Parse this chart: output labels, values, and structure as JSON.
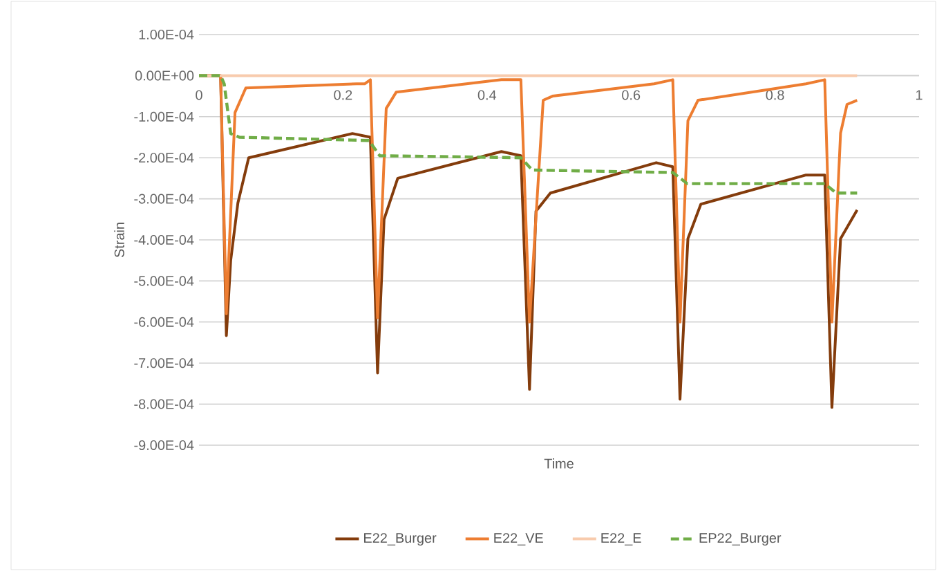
{
  "chart_data": {
    "type": "line",
    "xlabel": "Time",
    "ylabel": "Strain",
    "xlim": [
      0,
      1
    ],
    "xticks": [
      0,
      0.2,
      0.4,
      0.6,
      0.8,
      1
    ],
    "ylim": [
      -0.0009,
      0.0001
    ],
    "yticks": [
      {
        "value": 0.0001,
        "label": "1.00E-04"
      },
      {
        "value": 0,
        "label": "0.00E+00"
      },
      {
        "value": -0.0001,
        "label": "-1.00E-04"
      },
      {
        "value": -0.0002,
        "label": "-2.00E-04"
      },
      {
        "value": -0.0003,
        "label": "-3.00E-04"
      },
      {
        "value": -0.0004,
        "label": "-4.00E-04"
      },
      {
        "value": -0.0005,
        "label": "-5.00E-04"
      },
      {
        "value": -0.0006,
        "label": "-6.00E-04"
      },
      {
        "value": -0.0007,
        "label": "-7.00E-04"
      },
      {
        "value": -0.0008,
        "label": "-8.00E-04"
      },
      {
        "value": -0.0009,
        "label": "-9.00E-04"
      }
    ],
    "grid": "y",
    "legend": "bottom",
    "marker": "none",
    "series": [
      {
        "name": "E22_Burger",
        "color": "#843c0c",
        "line_style": "solid",
        "x": [
          0,
          0.03,
          0.038,
          0.044,
          0.054,
          0.069,
          0.213,
          0.238,
          0.248,
          0.257,
          0.276,
          0.42,
          0.447,
          0.459,
          0.468,
          0.488,
          0.635,
          0.658,
          0.668,
          0.679,
          0.697,
          0.843,
          0.869,
          0.879,
          0.891,
          0.914
        ],
        "values": [
          0,
          0,
          -0.000633,
          -0.00045,
          -0.00031,
          -0.0002,
          -0.000141,
          -0.00015,
          -0.000724,
          -0.00035,
          -0.00025,
          -0.000185,
          -0.000195,
          -0.000764,
          -0.00033,
          -0.000286,
          -0.000212,
          -0.000222,
          -0.000788,
          -0.000397,
          -0.000313,
          -0.000242,
          -0.000242,
          -0.000808,
          -0.000397,
          -0.000327
        ]
      },
      {
        "name": "E22_VE",
        "color": "#ed7d31",
        "line_style": "solid",
        "x": [
          0,
          0.03,
          0.038,
          0.05,
          0.065,
          0.219,
          0.23,
          0.238,
          0.248,
          0.26,
          0.274,
          0.42,
          0.447,
          0.459,
          0.478,
          0.491,
          0.632,
          0.658,
          0.668,
          0.679,
          0.693,
          0.843,
          0.869,
          0.879,
          0.891,
          0.9,
          0.914
        ],
        "values": [
          0,
          0,
          -0.00058,
          -9e-05,
          -3e-05,
          -2e-05,
          -2e-05,
          -1e-05,
          -0.00059,
          -8e-05,
          -4e-05,
          -1e-05,
          -1e-05,
          -0.0006,
          -6e-05,
          -5e-05,
          -2e-05,
          -1e-05,
          -0.0006,
          -0.00011,
          -6e-05,
          -2e-05,
          -1e-05,
          -0.0006,
          -0.00014,
          -7e-05,
          -6e-05
        ]
      },
      {
        "name": "E22_E",
        "color": "#f8cbad",
        "line_style": "solid",
        "x": [
          0,
          0.2,
          0.4,
          0.6,
          0.8,
          0.914
        ],
        "values": [
          0,
          0,
          0,
          0,
          0,
          0
        ]
      },
      {
        "name": "EP22_Burger",
        "color": "#70ad47",
        "line_style": "dashed",
        "x": [
          0,
          0.03,
          0.035,
          0.044,
          0.056,
          0.236,
          0.251,
          0.447,
          0.463,
          0.658,
          0.678,
          0.869,
          0.885,
          0.914
        ],
        "values": [
          0,
          0,
          -2e-05,
          -0.000141,
          -0.00015,
          -0.000158,
          -0.000195,
          -0.0002,
          -0.00023,
          -0.000236,
          -0.000263,
          -0.000263,
          -0.000286,
          -0.000286
        ]
      }
    ]
  }
}
